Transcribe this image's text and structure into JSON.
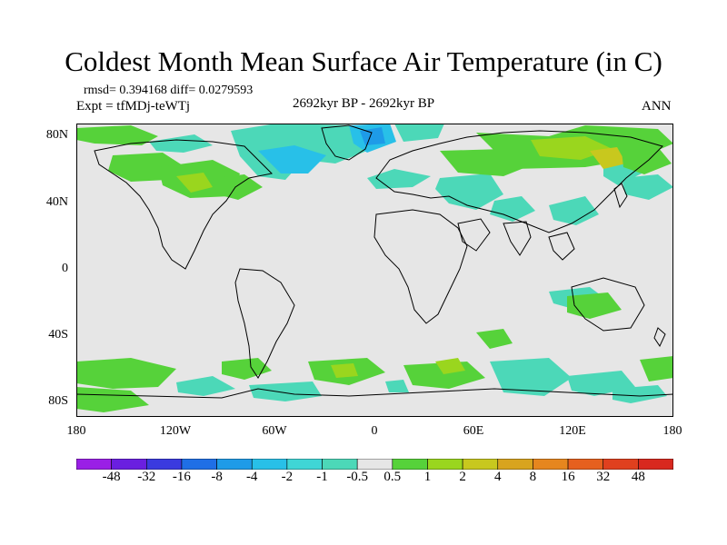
{
  "title": "Coldest Month Mean Surface Air Temperature (in C)",
  "stats": "rmsd= 0.394168 diff= 0.0279593",
  "experiment": "Expt = tfMDj-teWTj",
  "period": "2692kyr BP - 2692kyr BP",
  "season": "ANN",
  "y_ticks": [
    "80N",
    "40N",
    "0",
    "40S",
    "80S"
  ],
  "x_ticks": [
    "180",
    "120W",
    "60W",
    "0",
    "60E",
    "120E",
    "180"
  ],
  "colorbar": {
    "labels": [
      "-48",
      "-32",
      "-16",
      "-8",
      "-4",
      "-2",
      "-1",
      "-0.5",
      "0.5",
      "1",
      "2",
      "4",
      "8",
      "16",
      "32",
      "48"
    ],
    "colors": [
      "#9a1fe6",
      "#6a1fe0",
      "#3a3adf",
      "#1f6fe6",
      "#1e9be8",
      "#28c0e8",
      "#3fd6d6",
      "#4cd8b8",
      "#e6e6e6",
      "#56d23a",
      "#9ad61e",
      "#c8c81e",
      "#d8a41e",
      "#e6861e",
      "#e6601e",
      "#e0401e",
      "#d8281e"
    ]
  },
  "palette": {
    "background": "#e6e6e6",
    "land_outline": "#000000",
    "cool_light": "#4cd8b8",
    "cool_mid": "#28c0e8",
    "cool_strong": "#1e9be8",
    "warm_light": "#56d23a",
    "warm_mid": "#9ad61e",
    "warm_strong": "#c8c81e"
  }
}
